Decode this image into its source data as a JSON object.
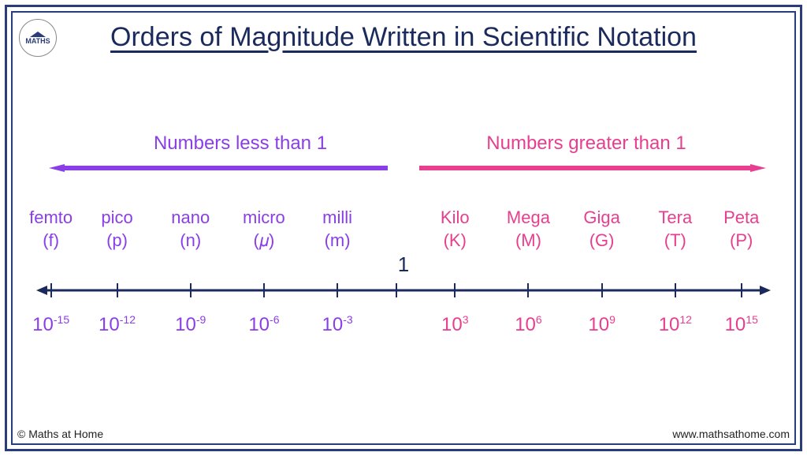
{
  "title": "Orders of Magnitude Written in Scientific Notation",
  "colors": {
    "frame": "#2a3d7a",
    "title": "#1b2a5c",
    "left_accent": "#8a3ee8",
    "right_accent": "#e73e8f",
    "numline": "#1b2a5c"
  },
  "regions": {
    "left_label": "Numbers less than 1",
    "right_label": "Numbers greater than 1"
  },
  "center_label": "1",
  "prefixes_small": [
    {
      "name": "femto",
      "symbol": "(f)",
      "power_base": "10",
      "power_exp": "-15",
      "pos_pct": 2
    },
    {
      "name": "pico",
      "symbol": "(p)",
      "power_base": "10",
      "power_exp": "-12",
      "pos_pct": 11
    },
    {
      "name": "nano",
      "symbol": "(n)",
      "power_base": "10",
      "power_exp": "-9",
      "pos_pct": 21
    },
    {
      "name": "micro",
      "symbol": "(𝜇)",
      "power_base": "10",
      "power_exp": "-6",
      "pos_pct": 31
    },
    {
      "name": "milli",
      "symbol": "(m)",
      "power_base": "10",
      "power_exp": "-3",
      "pos_pct": 41
    }
  ],
  "prefixes_large": [
    {
      "name": "Kilo",
      "symbol": "(K)",
      "power_base": "10",
      "power_exp": "3",
      "pos_pct": 57
    },
    {
      "name": "Mega",
      "symbol": "(M)",
      "power_base": "10",
      "power_exp": "6",
      "pos_pct": 67
    },
    {
      "name": "Giga",
      "symbol": "(G)",
      "power_base": "10",
      "power_exp": "9",
      "pos_pct": 77
    },
    {
      "name": "Tera",
      "symbol": "(T)",
      "power_base": "10",
      "power_exp": "12",
      "pos_pct": 87
    },
    {
      "name": "Peta",
      "symbol": "(P)",
      "power_base": "10",
      "power_exp": "15",
      "pos_pct": 96
    }
  ],
  "center_tick_pct": 49,
  "footer": {
    "left": "© Maths at Home",
    "right": "www.mathsathome.com"
  },
  "logo_text": "MATHS"
}
